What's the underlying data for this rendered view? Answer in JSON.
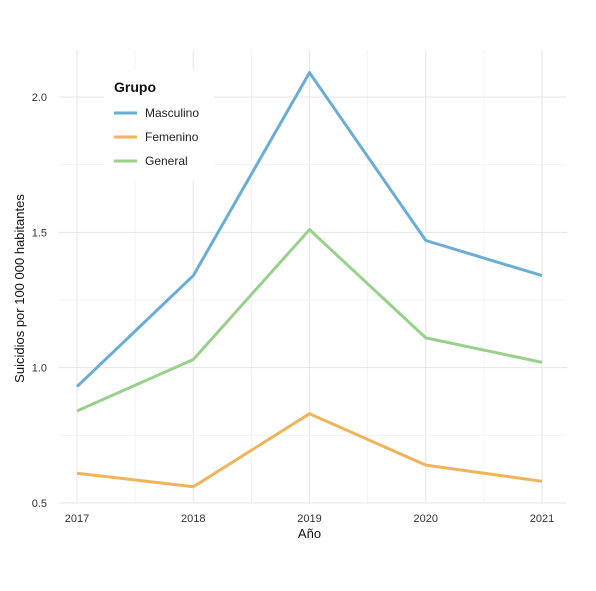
{
  "chart_data": {
    "type": "line",
    "title": "",
    "xlabel": "Año",
    "ylabel": "Suicidios por 100 000 habitantes",
    "x": [
      "2017",
      "2018",
      "2019",
      "2020",
      "2021"
    ],
    "xticks": [
      "2017",
      "2018",
      "2019",
      "2020",
      "2021"
    ],
    "yticks": [
      "0.5",
      "1.0",
      "1.5",
      "2.0"
    ],
    "ytick_values": [
      0.5,
      1.0,
      1.5,
      2.0
    ],
    "ylim": [
      0.5,
      2.16
    ],
    "grid": true,
    "legend": {
      "title": "Grupo",
      "placement": "top-left"
    },
    "series": [
      {
        "name": "Masculino",
        "color": "#6AAED6",
        "values": [
          0.93,
          1.34,
          2.09,
          1.47,
          1.34
        ]
      },
      {
        "name": "Femenino",
        "color": "#F0B45A",
        "values": [
          0.61,
          0.56,
          0.83,
          0.64,
          0.58
        ]
      },
      {
        "name": "General",
        "color": "#98D08C",
        "values": [
          0.84,
          1.03,
          1.51,
          1.11,
          1.02
        ]
      }
    ]
  }
}
